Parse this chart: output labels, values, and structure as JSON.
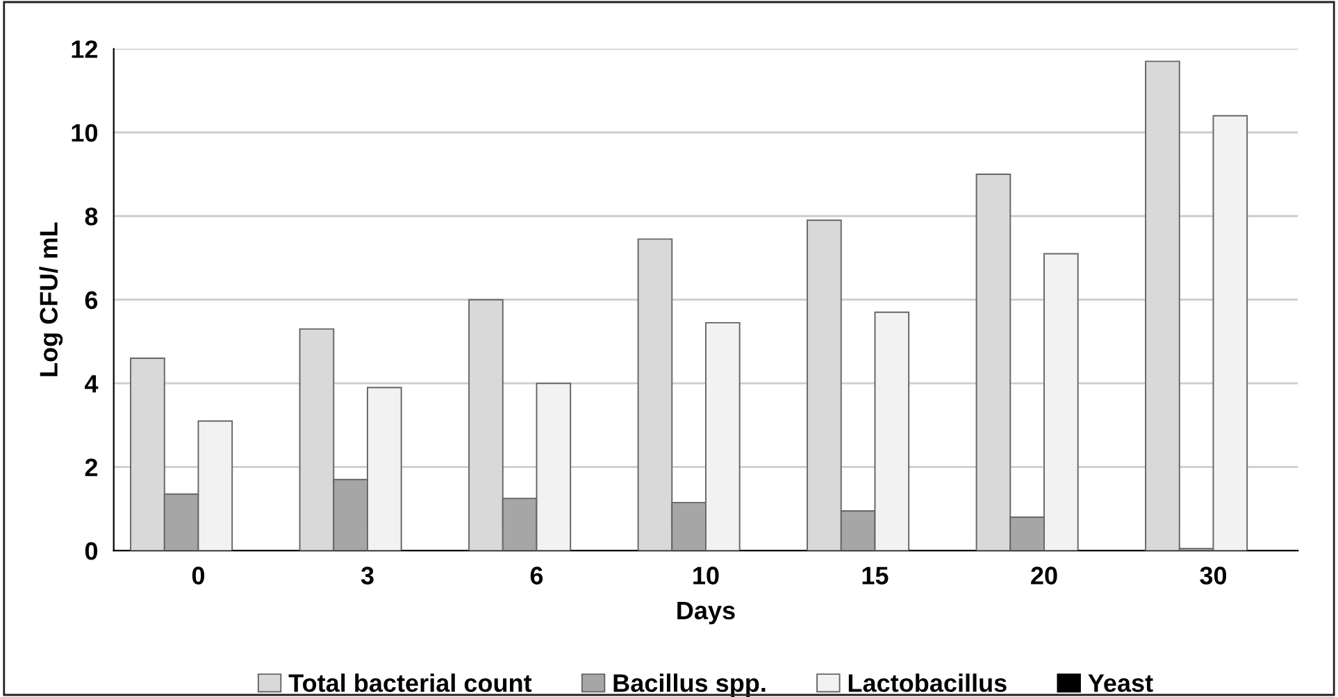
{
  "chart_data": {
    "type": "bar",
    "xlabel": "Days",
    "ylabel": "Log CFU/ mL",
    "categories": [
      "0",
      "3",
      "6",
      "10",
      "15",
      "20",
      "30"
    ],
    "series": [
      {
        "name": "Total bacterial count",
        "color": "#d9d9d9",
        "values": [
          4.6,
          5.3,
          6.0,
          7.45,
          7.9,
          9.0,
          11.7
        ]
      },
      {
        "name": "Bacillus spp.",
        "color": "#a6a6a6",
        "values": [
          1.35,
          1.7,
          1.25,
          1.15,
          0.95,
          0.8,
          0.05
        ]
      },
      {
        "name": "Lactobacillus",
        "color": "#f2f2f2",
        "values": [
          3.1,
          3.9,
          4.0,
          5.45,
          5.7,
          7.1,
          10.4
        ]
      },
      {
        "name": "Yeast",
        "color": "#000000",
        "values": [
          0,
          0,
          0,
          0,
          0,
          0,
          0
        ]
      }
    ],
    "ylim": [
      0,
      12
    ],
    "yticks": [
      0,
      2,
      4,
      6,
      8,
      10,
      12
    ],
    "grid": "y",
    "legend": "bottom"
  }
}
